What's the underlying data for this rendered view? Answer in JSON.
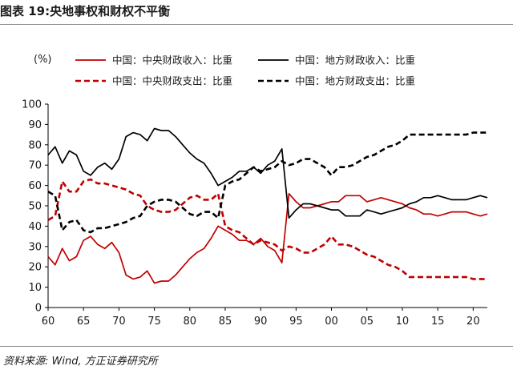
{
  "figure": {
    "title": "图表 19:央地事权和财权不平衡",
    "source": "资料来源: Wind, 方正证券研究所"
  },
  "colors": {
    "central": "#c00000",
    "local": "#000000",
    "rules": "#8c8c8c"
  },
  "chart_data": {
    "type": "line",
    "ylabel": "(%)",
    "xlim": [
      1960,
      2022
    ],
    "ylim": [
      0,
      100
    ],
    "yticks": [
      0,
      10,
      20,
      30,
      40,
      50,
      60,
      70,
      80,
      90,
      100
    ],
    "xticks": [
      1960,
      1965,
      1970,
      1975,
      1980,
      1985,
      1990,
      1995,
      2000,
      2005,
      2010,
      2015,
      2020
    ],
    "xtick_labels": [
      "60",
      "65",
      "70",
      "75",
      "80",
      "85",
      "90",
      "95",
      "00",
      "05",
      "10",
      "15",
      "20"
    ],
    "legend_position": "top",
    "grid": false,
    "x": [
      1960,
      1961,
      1962,
      1963,
      1964,
      1965,
      1966,
      1967,
      1968,
      1969,
      1970,
      1971,
      1972,
      1973,
      1974,
      1975,
      1976,
      1977,
      1978,
      1979,
      1980,
      1981,
      1982,
      1983,
      1984,
      1985,
      1986,
      1987,
      1988,
      1989,
      1990,
      1991,
      1992,
      1993,
      1994,
      1995,
      1996,
      1997,
      1998,
      1999,
      2000,
      2001,
      2002,
      2003,
      2004,
      2005,
      2006,
      2007,
      2008,
      2009,
      2010,
      2011,
      2012,
      2013,
      2014,
      2015,
      2016,
      2017,
      2018,
      2019,
      2020,
      2021,
      2022
    ],
    "series": [
      {
        "name": "中国：中央财政收入：比重",
        "color": "#c00000",
        "style": "solid",
        "values": [
          25,
          21,
          29,
          23,
          25,
          33,
          35,
          31,
          29,
          32,
          27,
          16,
          14,
          15,
          18,
          12,
          13,
          13,
          16,
          20,
          24,
          27,
          29,
          34,
          40,
          38,
          36,
          33,
          33,
          31,
          34,
          30,
          28,
          22,
          56,
          52,
          49,
          49,
          50,
          51,
          52,
          52,
          55,
          55,
          55,
          52,
          53,
          54,
          53,
          52,
          51,
          49,
          48,
          46,
          46,
          45,
          46,
          47,
          47,
          47,
          46,
          45,
          46
        ]
      },
      {
        "name": "中国：地方财政收入：比重",
        "color": "#000000",
        "style": "solid",
        "values": [
          75,
          79,
          71,
          77,
          75,
          67,
          65,
          69,
          71,
          68,
          73,
          84,
          86,
          85,
          82,
          88,
          87,
          87,
          84,
          80,
          76,
          73,
          71,
          66,
          60,
          62,
          64,
          67,
          67,
          69,
          66,
          70,
          72,
          78,
          44,
          48,
          51,
          51,
          50,
          49,
          48,
          48,
          45,
          45,
          45,
          48,
          47,
          46,
          47,
          48,
          49,
          51,
          52,
          54,
          54,
          55,
          54,
          53,
          53,
          53,
          54,
          55,
          54
        ]
      },
      {
        "name": "中国：中央财政支出：比重",
        "color": "#c00000",
        "style": "dashed",
        "values": [
          43,
          45,
          62,
          57,
          57,
          62,
          63,
          61,
          61,
          60,
          59,
          58,
          56,
          55,
          50,
          48,
          47,
          47,
          48,
          51,
          54,
          55,
          53,
          53,
          56,
          40,
          38,
          37,
          34,
          31,
          33,
          32,
          31,
          28,
          30,
          29,
          27,
          27,
          29,
          31,
          35,
          31,
          31,
          30,
          28,
          26,
          25,
          23,
          21,
          20,
          18,
          15,
          15,
          15,
          15,
          15,
          15,
          15,
          15,
          15,
          14,
          14,
          14
        ]
      },
      {
        "name": "中国：地方财政支出：比重",
        "color": "#000000",
        "style": "dashed",
        "values": [
          57,
          55,
          38,
          42,
          43,
          38,
          37,
          39,
          39,
          40,
          41,
          42,
          44,
          45,
          50,
          52,
          53,
          53,
          52,
          49,
          46,
          45,
          47,
          47,
          44,
          60,
          62,
          63,
          66,
          69,
          67,
          68,
          69,
          72,
          70,
          71,
          73,
          73,
          71,
          69,
          65,
          69,
          69,
          70,
          72,
          74,
          75,
          77,
          79,
          80,
          82,
          85,
          85,
          85,
          85,
          85,
          85,
          85,
          85,
          85,
          86,
          86,
          86
        ]
      }
    ]
  }
}
